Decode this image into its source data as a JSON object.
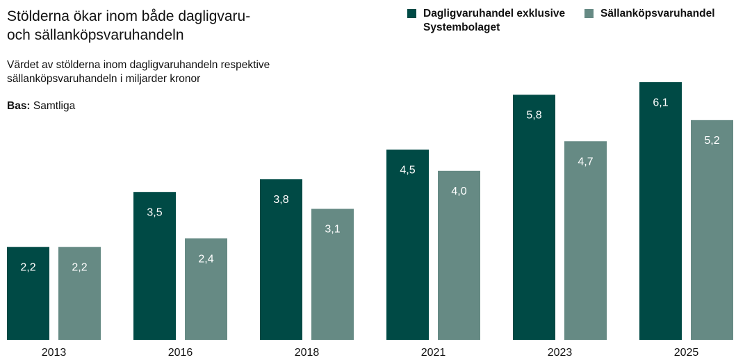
{
  "chart_data": {
    "type": "bar",
    "title": "Stölderna ökar inom både dagligvaru-\noch sällanköpsvaruhandeln",
    "subtitle": "Värdet av stölderna inom dagligvaruhandeln respektive sällanköpsvaruhandeln i miljarder kronor",
    "base_label": "Bas:",
    "base": "Samtliga",
    "categories": [
      "2013",
      "2016",
      "2018",
      "2021",
      "2023",
      "2025"
    ],
    "series": [
      {
        "name": "Dagligvaruhandel exklusive Systembolaget",
        "color": "#004a45",
        "values": [
          2.2,
          3.5,
          3.8,
          4.5,
          5.8,
          6.1
        ],
        "value_labels": [
          "2,2",
          "3,5",
          "3,8",
          "4,5",
          "5,8",
          "6,1"
        ]
      },
      {
        "name": "Sällanköpsvaruhandel",
        "color": "#668a84",
        "values": [
          2.2,
          2.4,
          3.1,
          4.0,
          4.7,
          5.2
        ],
        "value_labels": [
          "2,2",
          "2,4",
          "3,1",
          "4,0",
          "4,7",
          "5,2"
        ]
      }
    ]
  }
}
